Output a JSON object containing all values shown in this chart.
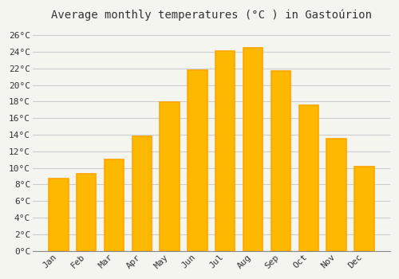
{
  "title": "Average monthly temperatures (°C ) in Gastoúrion",
  "months": [
    "Jan",
    "Feb",
    "Mar",
    "Apr",
    "May",
    "Jun",
    "Jul",
    "Aug",
    "Sep",
    "Oct",
    "Nov",
    "Dec"
  ],
  "values": [
    8.7,
    9.3,
    11.0,
    13.8,
    17.9,
    21.8,
    24.1,
    24.5,
    21.7,
    17.6,
    13.5,
    10.2
  ],
  "bar_color": "#FFA500",
  "bar_color_inner": "#FFB800",
  "ylim": [
    0,
    27
  ],
  "yticks": [
    0,
    2,
    4,
    6,
    8,
    10,
    12,
    14,
    16,
    18,
    20,
    22,
    24,
    26
  ],
  "background_color": "#F5F5F0",
  "plot_bg_color": "#F5F5F0",
  "grid_color": "#CCCCCC",
  "title_fontsize": 10,
  "tick_fontsize": 8,
  "font_family": "monospace",
  "bar_width": 0.7
}
